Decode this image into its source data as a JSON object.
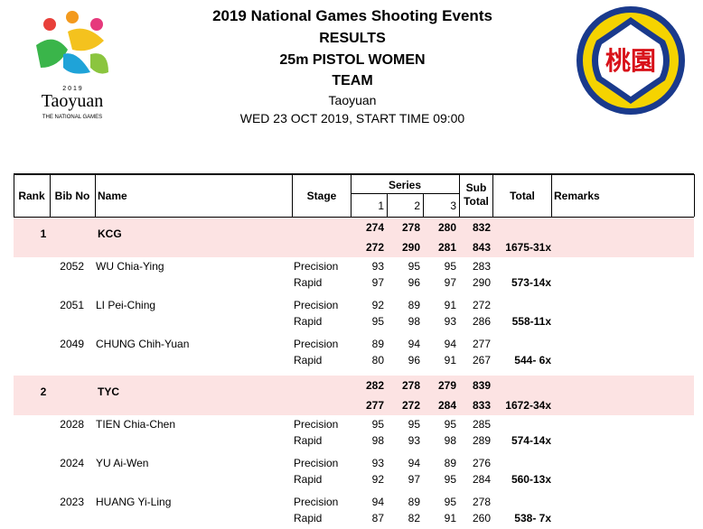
{
  "logo_left": {
    "year": "2 0 1 9",
    "city": "Taoyuan",
    "subtitle": "THE NATIONAL GAMES"
  },
  "logo_right": {
    "text": "桃園"
  },
  "header": {
    "lines": [
      "2019 National Games Shooting Events",
      "RESULTS",
      "25m PISTOL WOMEN",
      "TEAM",
      "Taoyuan",
      "WED 23 OCT 2019, START TIME 09:00"
    ]
  },
  "table": {
    "columns": {
      "rank": "Rank",
      "bib": "Bib No",
      "name": "Name",
      "stage": "Stage",
      "series": "Series",
      "series_numbers": [
        1,
        2,
        3
      ],
      "sub_total": "Sub Total",
      "total": "Total",
      "remarks": "Remarks"
    },
    "teams": [
      {
        "rank": 1,
        "name": "KCG",
        "series_rows": [
          {
            "series": [
              274,
              278,
              280
            ],
            "sub_total": 832
          },
          {
            "series": [
              272,
              290,
              281
            ],
            "sub_total": 843,
            "total": "1675-31x"
          }
        ],
        "members": [
          {
            "bib": 2052,
            "name": "WU Chia-Ying",
            "stages": [
              {
                "stage": "Precision",
                "series": [
                  93,
                  95,
                  95
                ],
                "sub_total": 283
              },
              {
                "stage": "Rapid",
                "series": [
                  97,
                  96,
                  97
                ],
                "sub_total": 290
              }
            ],
            "total": "573-14x"
          },
          {
            "bib": 2051,
            "name": "LI Pei-Ching",
            "stages": [
              {
                "stage": "Precision",
                "series": [
                  92,
                  89,
                  91
                ],
                "sub_total": 272
              },
              {
                "stage": "Rapid",
                "series": [
                  95,
                  98,
                  93
                ],
                "sub_total": 286
              }
            ],
            "total": "558-11x"
          },
          {
            "bib": 2049,
            "name": "CHUNG Chih-Yuan",
            "stages": [
              {
                "stage": "Precision",
                "series": [
                  89,
                  94,
                  94
                ],
                "sub_total": 277
              },
              {
                "stage": "Rapid",
                "series": [
                  80,
                  96,
                  91
                ],
                "sub_total": 267
              }
            ],
            "total": "544- 6x"
          }
        ]
      },
      {
        "rank": 2,
        "name": "TYC",
        "series_rows": [
          {
            "series": [
              282,
              278,
              279
            ],
            "sub_total": 839
          },
          {
            "series": [
              277,
              272,
              284
            ],
            "sub_total": 833,
            "total": "1672-34x"
          }
        ],
        "members": [
          {
            "bib": 2028,
            "name": "TIEN Chia-Chen",
            "stages": [
              {
                "stage": "Precision",
                "series": [
                  95,
                  95,
                  95
                ],
                "sub_total": 285
              },
              {
                "stage": "Rapid",
                "series": [
                  98,
                  93,
                  98
                ],
                "sub_total": 289
              }
            ],
            "total": "574-14x"
          },
          {
            "bib": 2024,
            "name": "YU Ai-Wen",
            "stages": [
              {
                "stage": "Precision",
                "series": [
                  93,
                  94,
                  89
                ],
                "sub_total": 276
              },
              {
                "stage": "Rapid",
                "series": [
                  92,
                  97,
                  95
                ],
                "sub_total": 284
              }
            ],
            "total": "560-13x"
          },
          {
            "bib": 2023,
            "name": "HUANG Yi-Ling",
            "stages": [
              {
                "stage": "Precision",
                "series": [
                  94,
                  89,
                  95
                ],
                "sub_total": 278
              },
              {
                "stage": "Rapid",
                "series": [
                  87,
                  82,
                  91
                ],
                "sub_total": 260
              }
            ],
            "total": "538- 7x"
          }
        ]
      }
    ]
  }
}
